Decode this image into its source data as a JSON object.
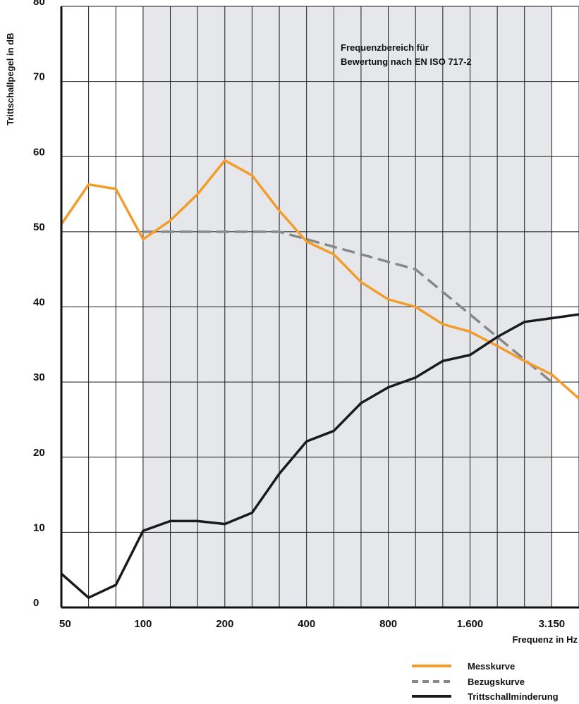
{
  "chart_data": {
    "type": "line",
    "ylabel": "Trittschallpegel in dB",
    "xlabel": "Frequenz in Hz",
    "ylim": [
      0,
      80
    ],
    "y_ticks": [
      "0",
      "10",
      "20",
      "30",
      "40",
      "50",
      "60",
      "70",
      "80"
    ],
    "x": [
      50,
      63,
      80,
      100,
      125,
      160,
      200,
      250,
      315,
      400,
      500,
      630,
      800,
      1000,
      1250,
      1600,
      2000,
      2500,
      3150,
      4000
    ],
    "x_tick_labels": [
      "50",
      "100",
      "200",
      "400",
      "800",
      "1.600",
      "3.150"
    ],
    "shaded_range": [
      100,
      3150
    ],
    "annotation": [
      "Frequenzbereich für",
      "Bewertung nach EN ISO 717-2"
    ],
    "grid": true,
    "legend_position": "bottom-right",
    "series": [
      {
        "name": "Messkurve",
        "color": "#f39c2b",
        "style": "solid",
        "x": [
          50,
          63,
          80,
          100,
          125,
          160,
          200,
          250,
          315,
          400,
          500,
          630,
          800,
          1000,
          1250,
          1600,
          2000,
          2500,
          3150,
          4000
        ],
        "values": [
          51,
          56.3,
          55.7,
          49,
          51.5,
          55,
          59.5,
          57.5,
          52.8,
          48.7,
          47,
          43.3,
          41,
          40,
          37.7,
          36.7,
          34.8,
          32.8,
          31,
          27.8
        ]
      },
      {
        "name": "Bezugskurve",
        "color": "#888888",
        "style": "dashed",
        "x": [
          100,
          125,
          160,
          200,
          250,
          315,
          400,
          500,
          630,
          800,
          1000,
          1250,
          1600,
          2000,
          2500,
          3150
        ],
        "values": [
          50,
          50,
          50,
          50,
          50,
          50,
          49,
          48,
          47,
          46,
          45,
          42,
          39,
          36,
          33,
          30
        ]
      },
      {
        "name": "Trittschallminderung",
        "color": "#1a1a1a",
        "style": "solid",
        "x": [
          50,
          63,
          80,
          100,
          125,
          160,
          200,
          250,
          315,
          400,
          500,
          630,
          800,
          1000,
          1250,
          1600,
          2000,
          2500,
          3150,
          4000
        ],
        "values": [
          4.5,
          1.3,
          3,
          10.2,
          11.5,
          11.5,
          11.1,
          12.6,
          17.8,
          22.1,
          23.5,
          27.2,
          29.3,
          30.6,
          32.8,
          33.6,
          36,
          38,
          38.5,
          39
        ]
      }
    ]
  }
}
